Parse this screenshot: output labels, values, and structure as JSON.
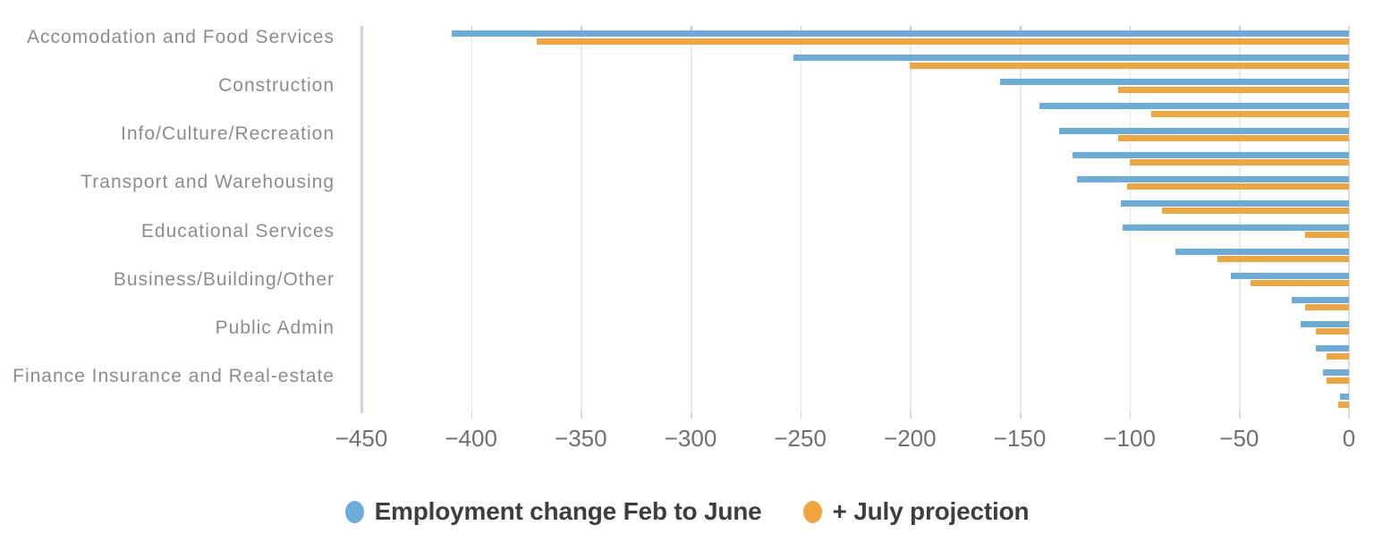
{
  "chart_data": {
    "type": "bar",
    "orientation": "horizontal",
    "title": "",
    "xlabel": "",
    "ylabel": "",
    "legend_position": "bottom",
    "grid": true,
    "series": [
      {
        "name": "Employment change Feb to June",
        "color": "#6badd8"
      },
      {
        "name": "+ July projection",
        "color": "#f0a63f"
      }
    ],
    "x_axis": {
      "min": -450,
      "max": 0,
      "tick_values": [
        -450,
        -400,
        -350,
        -300,
        -250,
        -200,
        -150,
        -100,
        -50,
        0
      ],
      "tick_labels": [
        "−450",
        "−400",
        "−350",
        "−300",
        "−250",
        "−200",
        "−150",
        "−100",
        "−50",
        "0"
      ]
    },
    "rows": [
      {
        "label": "Accomodation and Food Services",
        "values": [
          -409,
          -370
        ]
      },
      {
        "label": "",
        "values": [
          -253,
          -200
        ]
      },
      {
        "label": "Construction",
        "values": [
          -159,
          -105
        ]
      },
      {
        "label": "",
        "values": [
          -141,
          -90
        ]
      },
      {
        "label": "Info/Culture/Recreation",
        "values": [
          -132,
          -105
        ]
      },
      {
        "label": "",
        "values": [
          -126,
          -100
        ]
      },
      {
        "label": "Transport and Warehousing",
        "values": [
          -124,
          -101
        ]
      },
      {
        "label": "",
        "values": [
          -104,
          -85
        ]
      },
      {
        "label": "Educational Services",
        "values": [
          -103,
          -20
        ]
      },
      {
        "label": "",
        "values": [
          -79,
          -60
        ]
      },
      {
        "label": "Business/Building/Other",
        "values": [
          -54,
          -45
        ]
      },
      {
        "label": "",
        "values": [
          -26,
          -20
        ]
      },
      {
        "label": "Public Admin",
        "values": [
          -22,
          -15
        ]
      },
      {
        "label": "",
        "values": [
          -15,
          -10
        ]
      },
      {
        "label": "Finance Insurance and Real-estate",
        "values": [
          -12,
          -10
        ]
      },
      {
        "label": "",
        "values": [
          -4,
          -5
        ]
      }
    ]
  },
  "legend": {
    "items": [
      {
        "label": "Employment change Feb to June",
        "color": "#6badd8"
      },
      {
        "label": "+ July projection",
        "color": "#f0a63f"
      }
    ]
  },
  "colors": {
    "bar_blue": "#6badd8",
    "bar_orange": "#f0a63f",
    "category_label": "#8a8d90",
    "tick_label": "#6d7076",
    "legend_text": "#3c3e40",
    "left_axis_line": "#c9d3ea",
    "gridline": "#e9e9e9"
  }
}
